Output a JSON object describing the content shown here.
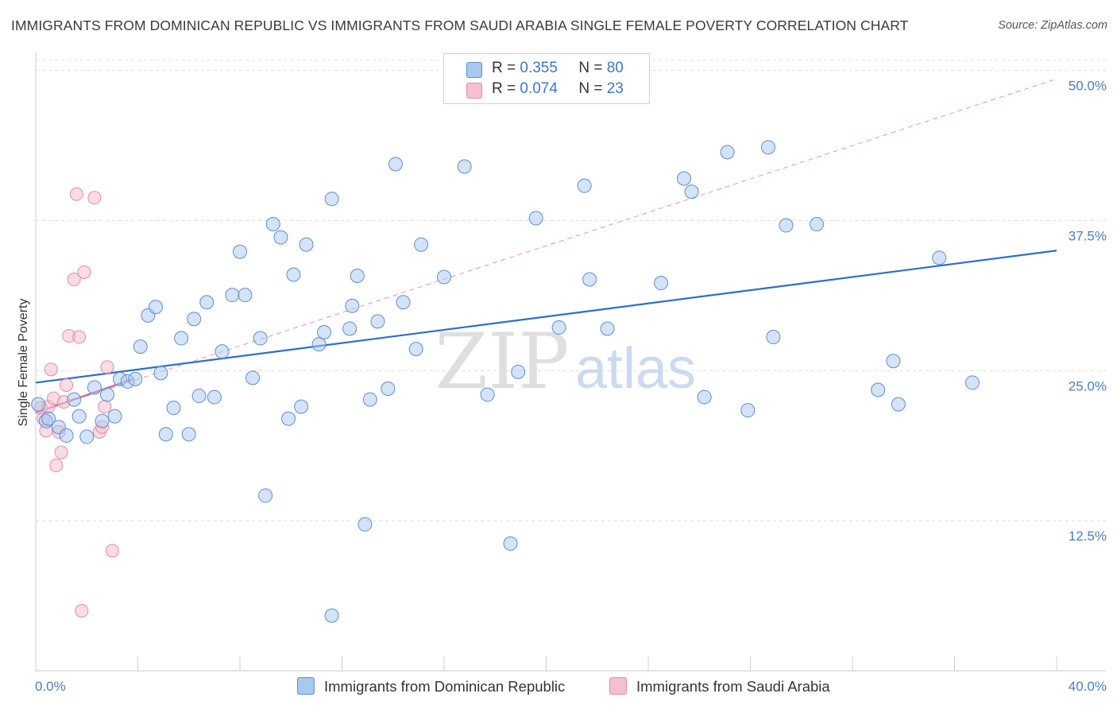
{
  "header": {
    "title": "IMMIGRANTS FROM DOMINICAN REPUBLIC VS IMMIGRANTS FROM SAUDI ARABIA SINGLE FEMALE POVERTY CORRELATION CHART",
    "source": "Source: ZipAtlas.com"
  },
  "legend": {
    "rows": [
      {
        "r_label": "R = ",
        "r_value": "0.355",
        "n_label": "N = ",
        "n_value": "80"
      },
      {
        "r_label": "R = ",
        "r_value": "0.074",
        "n_label": "N = ",
        "n_value": "23"
      }
    ],
    "bottom": [
      "Immigrants from Dominican Republic",
      "Immigrants from Saudi Arabia"
    ]
  },
  "watermark": {
    "zip": "ZIP",
    "atlas": "atlas"
  },
  "colors": {
    "blue_fill": "#a9c8ee",
    "blue_stroke": "#5b8fd6",
    "blue_line": "#2a6fd1",
    "pink_fill": "#f6bfd0",
    "pink_stroke": "#e889a8",
    "pink_line": "#e0608e",
    "tick_text": "#4a7cc7",
    "grid": "#dddddd"
  },
  "chart_data": {
    "type": "scatter",
    "title": "IMMIGRANTS FROM DOMINICAN REPUBLIC VS IMMIGRANTS FROM SAUDI ARABIA SINGLE FEMALE POVERTY CORRELATION CHART",
    "xlabel": "",
    "ylabel": "Single Female Poverty",
    "xlim": [
      0,
      40
    ],
    "ylim": [
      0,
      51.5
    ],
    "x_tick_labels": [
      "0.0%",
      "40.0%"
    ],
    "y_ticks": [
      12.5,
      25.0,
      37.5,
      50.0
    ],
    "y_tick_labels": [
      "12.5%",
      "25.0%",
      "37.5%",
      "50.0%"
    ],
    "grid": true,
    "series": [
      {
        "name": "Immigrants from Dominican Republic",
        "R": 0.355,
        "N": 80,
        "trend": {
          "x0": 0,
          "y0": 24.0,
          "x1": 40,
          "y1": 35.0
        },
        "points": [
          [
            0.1,
            22.2
          ],
          [
            0.4,
            20.8
          ],
          [
            0.5,
            21.0
          ],
          [
            0.9,
            20.3
          ],
          [
            1.2,
            19.6
          ],
          [
            1.5,
            22.6
          ],
          [
            1.7,
            21.2
          ],
          [
            2.0,
            19.5
          ],
          [
            2.3,
            23.6
          ],
          [
            2.6,
            20.8
          ],
          [
            2.8,
            23.0
          ],
          [
            3.1,
            21.2
          ],
          [
            3.3,
            24.3
          ],
          [
            3.6,
            24.1
          ],
          [
            3.9,
            24.3
          ],
          [
            4.1,
            27.0
          ],
          [
            4.4,
            29.6
          ],
          [
            4.7,
            30.3
          ],
          [
            4.9,
            24.8
          ],
          [
            5.1,
            19.7
          ],
          [
            5.4,
            21.9
          ],
          [
            5.7,
            27.7
          ],
          [
            6.0,
            19.7
          ],
          [
            6.2,
            29.3
          ],
          [
            6.4,
            22.9
          ],
          [
            6.7,
            30.7
          ],
          [
            7.0,
            22.8
          ],
          [
            7.3,
            26.6
          ],
          [
            7.7,
            31.3
          ],
          [
            8.0,
            34.9
          ],
          [
            8.2,
            31.3
          ],
          [
            8.5,
            24.4
          ],
          [
            8.8,
            27.7
          ],
          [
            9.0,
            14.6
          ],
          [
            9.3,
            37.2
          ],
          [
            9.6,
            36.1
          ],
          [
            9.9,
            21.0
          ],
          [
            10.1,
            33.0
          ],
          [
            10.4,
            22.0
          ],
          [
            10.6,
            35.5
          ],
          [
            11.1,
            27.2
          ],
          [
            11.3,
            28.2
          ],
          [
            11.6,
            39.3
          ],
          [
            11.6,
            4.6
          ],
          [
            12.3,
            28.5
          ],
          [
            12.4,
            30.4
          ],
          [
            12.6,
            32.9
          ],
          [
            12.9,
            12.2
          ],
          [
            13.1,
            22.6
          ],
          [
            13.4,
            29.1
          ],
          [
            13.8,
            23.5
          ],
          [
            14.1,
            42.2
          ],
          [
            14.4,
            30.7
          ],
          [
            14.9,
            26.8
          ],
          [
            15.1,
            35.5
          ],
          [
            16.0,
            32.8
          ],
          [
            16.8,
            42.0
          ],
          [
            17.7,
            23.0
          ],
          [
            18.6,
            10.6
          ],
          [
            18.9,
            24.9
          ],
          [
            19.6,
            37.7
          ],
          [
            20.5,
            28.6
          ],
          [
            21.5,
            40.4
          ],
          [
            21.7,
            32.6
          ],
          [
            22.4,
            28.5
          ],
          [
            24.5,
            32.3
          ],
          [
            25.4,
            41.0
          ],
          [
            25.7,
            39.9
          ],
          [
            26.2,
            22.8
          ],
          [
            27.1,
            43.2
          ],
          [
            27.9,
            21.7
          ],
          [
            28.7,
            43.6
          ],
          [
            28.9,
            27.8
          ],
          [
            29.4,
            37.1
          ],
          [
            30.6,
            37.2
          ],
          [
            33.0,
            23.4
          ],
          [
            33.6,
            25.8
          ],
          [
            33.8,
            22.2
          ],
          [
            35.4,
            34.4
          ],
          [
            36.7,
            24.0
          ]
        ]
      },
      {
        "name": "Immigrants from Saudi Arabia",
        "R": 0.074,
        "N": 23,
        "trend": {
          "x0": 0,
          "y0": 21.5,
          "x1": 3.8,
          "y1": 24.3
        },
        "trend_extended": {
          "x0": 0,
          "y0": 21.5,
          "x1": 40,
          "y1": 49.3
        },
        "points": [
          [
            0.2,
            21.9
          ],
          [
            0.3,
            21.0
          ],
          [
            0.4,
            20.0
          ],
          [
            0.5,
            22.0
          ],
          [
            0.6,
            25.1
          ],
          [
            0.7,
            22.7
          ],
          [
            0.8,
            17.1
          ],
          [
            0.9,
            19.9
          ],
          [
            1.0,
            18.2
          ],
          [
            1.1,
            22.4
          ],
          [
            1.2,
            23.8
          ],
          [
            1.3,
            27.9
          ],
          [
            1.5,
            32.6
          ],
          [
            1.6,
            39.7
          ],
          [
            1.7,
            27.8
          ],
          [
            1.8,
            5.0
          ],
          [
            1.9,
            33.2
          ],
          [
            2.3,
            39.4
          ],
          [
            2.5,
            19.9
          ],
          [
            2.6,
            20.3
          ],
          [
            2.7,
            22.0
          ],
          [
            2.8,
            25.3
          ],
          [
            3.0,
            10.0
          ]
        ]
      }
    ]
  }
}
